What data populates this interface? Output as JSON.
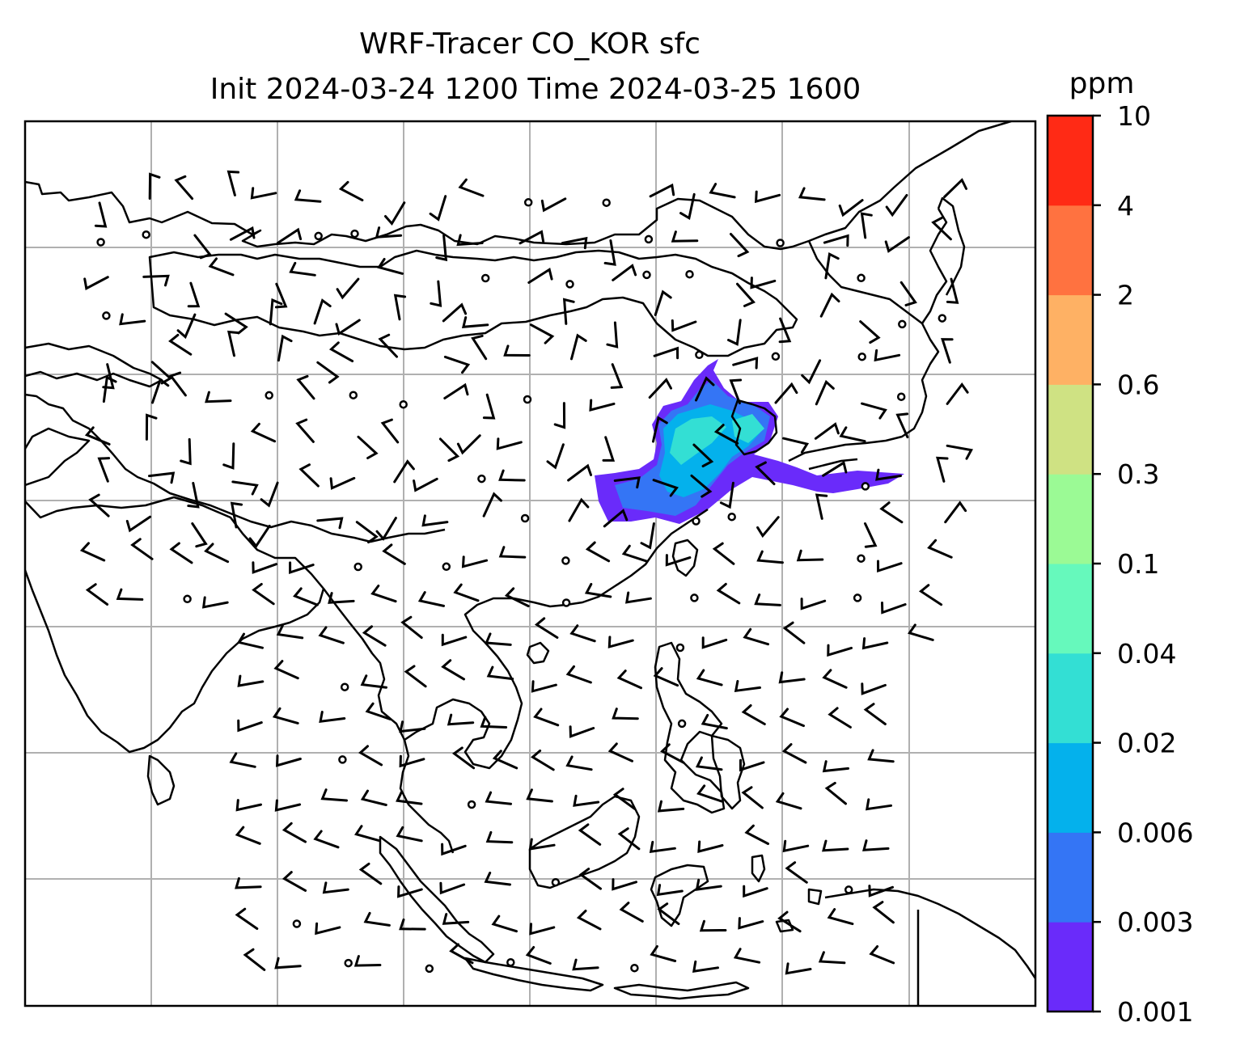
{
  "title": {
    "line1": "WRF-Tracer CO_KOR sfc",
    "line2": "Init 2024-03-24 1200 Time 2024-03-25 1600"
  },
  "colorbar": {
    "unit": "ppm",
    "levels": [
      "0.001",
      "0.003",
      "0.006",
      "0.02",
      "0.04",
      "0.1",
      "0.3",
      "0.6",
      "2",
      "4",
      "10"
    ],
    "colors": [
      "#6a2bfa",
      "#3475f5",
      "#04b1ec",
      "#33dfd4",
      "#66f9bc",
      "#9bfa95",
      "#cfe283",
      "#feb164",
      "#ff7240",
      "#ff2a15"
    ]
  },
  "map": {
    "coastline_color": "#000000",
    "gridline_color": "#b0b0b0",
    "wind_barb_color": "#000000"
  }
}
